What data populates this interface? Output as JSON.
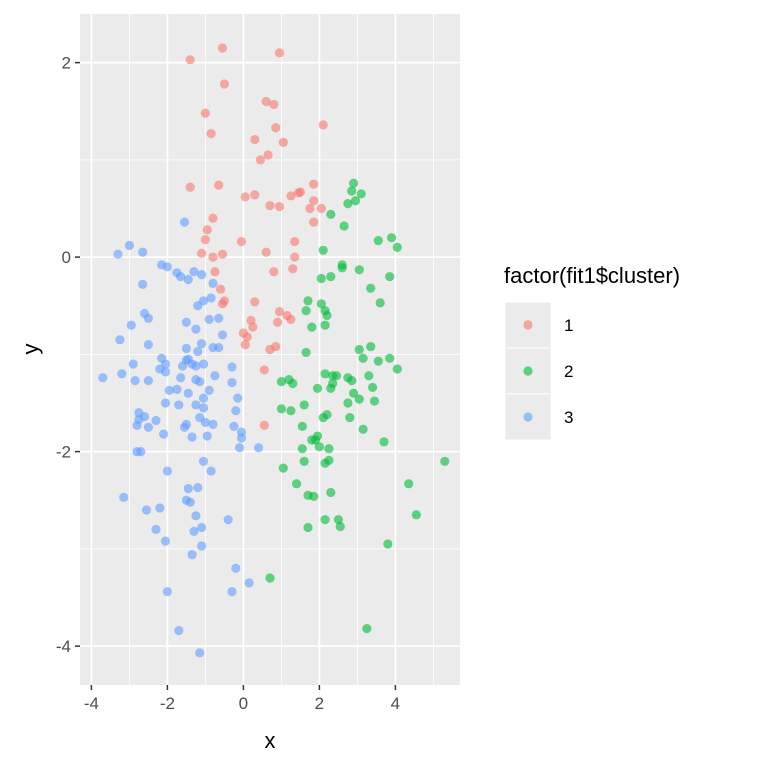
{
  "chart_data": {
    "type": "scatter",
    "xlabel": "x",
    "ylabel": "y",
    "xlim": [
      -4.3,
      5.7
    ],
    "ylim": [
      -4.4,
      2.5
    ],
    "x_ticks": [
      -4,
      -2,
      0,
      2,
      4
    ],
    "y_ticks": [
      -4,
      -2,
      0,
      2
    ],
    "x_tick_labels": [
      "-4",
      "-2",
      "0",
      "2",
      "4"
    ],
    "y_tick_labels": [
      "-4",
      "-2",
      "0",
      "2"
    ],
    "grid": true,
    "legend": {
      "title": "factor(fit1$cluster)",
      "placement": "right"
    },
    "series": [
      {
        "name": "1",
        "color": "#F8766D",
        "points": [
          [
            -1.4,
            2.03
          ],
          [
            -0.55,
            2.15
          ],
          [
            0.95,
            2.1
          ],
          [
            -0.5,
            1.78
          ],
          [
            0.6,
            1.6
          ],
          [
            0.8,
            1.57
          ],
          [
            -1.0,
            1.48
          ],
          [
            2.1,
            1.36
          ],
          [
            0.85,
            1.33
          ],
          [
            -0.85,
            1.27
          ],
          [
            0.3,
            1.21
          ],
          [
            1.05,
            1.18
          ],
          [
            0.65,
            1.05
          ],
          [
            0.45,
            1.0
          ],
          [
            -1.4,
            0.72
          ],
          [
            -0.65,
            0.74
          ],
          [
            1.85,
            0.75
          ],
          [
            1.5,
            0.67
          ],
          [
            1.45,
            0.66
          ],
          [
            1.25,
            0.63
          ],
          [
            0.3,
            0.64
          ],
          [
            0.05,
            0.62
          ],
          [
            1.75,
            0.5
          ],
          [
            0.7,
            0.53
          ],
          [
            0.95,
            0.52
          ],
          [
            2.05,
            0.5
          ],
          [
            1.85,
            0.58
          ],
          [
            -0.8,
            0.4
          ],
          [
            1.85,
            0.36
          ],
          [
            -0.95,
            0.28
          ],
          [
            -1.0,
            0.18
          ],
          [
            1.35,
            0.16
          ],
          [
            -0.05,
            0.16
          ],
          [
            -1.1,
            0.04
          ],
          [
            -0.8,
            0.0
          ],
          [
            -0.55,
            0.03
          ],
          [
            0.6,
            0.05
          ],
          [
            -0.75,
            -0.15
          ],
          [
            0.8,
            -0.15
          ],
          [
            1.35,
            0.0
          ],
          [
            1.3,
            -0.12
          ],
          [
            -0.6,
            -0.33
          ],
          [
            -0.5,
            -0.45
          ],
          [
            -0.55,
            -0.48
          ],
          [
            0.3,
            -0.46
          ],
          [
            0.95,
            -0.56
          ],
          [
            1.15,
            -0.6
          ],
          [
            0.2,
            -0.65
          ],
          [
            0.25,
            -0.72
          ],
          [
            0.9,
            -0.67
          ],
          [
            1.25,
            -0.64
          ],
          [
            0.1,
            -0.82
          ],
          [
            0.85,
            -0.92
          ],
          [
            0.7,
            -0.95
          ],
          [
            0.55,
            -1.16
          ],
          [
            0.55,
            -1.73
          ],
          [
            0.0,
            -0.78
          ],
          [
            0.05,
            -0.9
          ]
        ]
      },
      {
        "name": "2",
        "color": "#00BA38",
        "points": [
          [
            2.9,
            0.76
          ],
          [
            2.85,
            0.68
          ],
          [
            3.1,
            0.65
          ],
          [
            2.75,
            0.55
          ],
          [
            2.95,
            0.58
          ],
          [
            2.3,
            0.44
          ],
          [
            2.65,
            0.32
          ],
          [
            3.9,
            0.2
          ],
          [
            3.55,
            0.17
          ],
          [
            4.05,
            0.1
          ],
          [
            2.1,
            0.07
          ],
          [
            2.6,
            -0.08
          ],
          [
            2.6,
            -0.11
          ],
          [
            3.05,
            -0.13
          ],
          [
            3.85,
            -0.2
          ],
          [
            2.3,
            -0.2
          ],
          [
            2.05,
            -0.22
          ],
          [
            3.35,
            -0.32
          ],
          [
            1.7,
            -0.45
          ],
          [
            2.05,
            -0.48
          ],
          [
            3.6,
            -0.47
          ],
          [
            1.65,
            -0.55
          ],
          [
            2.15,
            -0.55
          ],
          [
            2.2,
            -0.6
          ],
          [
            1.8,
            -0.72
          ],
          [
            2.15,
            -0.7
          ],
          [
            3.35,
            -0.92
          ],
          [
            3.05,
            -0.95
          ],
          [
            1.65,
            -0.98
          ],
          [
            3.15,
            -1.04
          ],
          [
            3.55,
            -1.07
          ],
          [
            3.85,
            -1.04
          ],
          [
            2.15,
            -1.2
          ],
          [
            2.35,
            -1.22
          ],
          [
            2.45,
            -1.22
          ],
          [
            3.3,
            -1.22
          ],
          [
            4.05,
            -1.15
          ],
          [
            2.75,
            -1.24
          ],
          [
            2.85,
            -1.27
          ],
          [
            1.0,
            -1.28
          ],
          [
            1.2,
            -1.26
          ],
          [
            1.3,
            -1.3
          ],
          [
            2.35,
            -1.3
          ],
          [
            2.3,
            -1.35
          ],
          [
            1.95,
            -1.35
          ],
          [
            2.9,
            -1.4
          ],
          [
            3.4,
            -1.34
          ],
          [
            2.75,
            -1.5
          ],
          [
            3.05,
            -1.46
          ],
          [
            3.45,
            -1.48
          ],
          [
            1.0,
            -1.56
          ],
          [
            1.6,
            -1.52
          ],
          [
            1.25,
            -1.58
          ],
          [
            2.1,
            -1.65
          ],
          [
            2.2,
            -1.62
          ],
          [
            2.8,
            -1.65
          ],
          [
            3.15,
            -1.77
          ],
          [
            1.55,
            -1.74
          ],
          [
            1.8,
            -1.88
          ],
          [
            1.9,
            -1.88
          ],
          [
            1.95,
            -1.84
          ],
          [
            2.0,
            -1.95
          ],
          [
            2.25,
            -1.97
          ],
          [
            3.7,
            -1.9
          ],
          [
            1.55,
            -1.97
          ],
          [
            1.6,
            -2.1
          ],
          [
            2.15,
            -2.12
          ],
          [
            2.25,
            -2.09
          ],
          [
            5.3,
            -2.1
          ],
          [
            1.05,
            -2.17
          ],
          [
            1.4,
            -2.33
          ],
          [
            4.35,
            -2.33
          ],
          [
            2.3,
            -2.42
          ],
          [
            1.7,
            -2.45
          ],
          [
            1.85,
            -2.46
          ],
          [
            2.15,
            -2.7
          ],
          [
            2.5,
            -2.7
          ],
          [
            4.55,
            -2.65
          ],
          [
            2.55,
            -2.77
          ],
          [
            1.7,
            -2.78
          ],
          [
            3.8,
            -2.95
          ],
          [
            0.7,
            -3.3
          ],
          [
            3.25,
            -3.82
          ]
        ]
      },
      {
        "name": "3",
        "color": "#619CFF",
        "points": [
          [
            -3.0,
            0.12
          ],
          [
            -2.65,
            0.05
          ],
          [
            -3.3,
            0.03
          ],
          [
            -2.15,
            -0.08
          ],
          [
            -2.0,
            -0.1
          ],
          [
            -1.75,
            -0.16
          ],
          [
            -1.3,
            -0.15
          ],
          [
            -1.1,
            -0.18
          ],
          [
            -1.65,
            -0.2
          ],
          [
            -1.45,
            -0.23
          ],
          [
            -0.8,
            -0.27
          ],
          [
            -2.65,
            -0.28
          ],
          [
            -0.85,
            -0.42
          ],
          [
            -1.05,
            -0.45
          ],
          [
            -1.2,
            -0.5
          ],
          [
            -2.6,
            -0.58
          ],
          [
            -2.5,
            -0.63
          ],
          [
            -0.9,
            -0.64
          ],
          [
            -0.65,
            -0.63
          ],
          [
            -1.5,
            -0.67
          ],
          [
            -2.95,
            -0.7
          ],
          [
            -1.25,
            -0.74
          ],
          [
            -0.55,
            -0.8
          ],
          [
            -3.25,
            -0.85
          ],
          [
            -1.1,
            -0.89
          ],
          [
            -2.5,
            -0.9
          ],
          [
            -0.8,
            -0.93
          ],
          [
            -0.65,
            -0.93
          ],
          [
            -1.5,
            -0.94
          ],
          [
            -1.2,
            -0.97
          ],
          [
            -2.15,
            -1.04
          ],
          [
            -1.5,
            -1.06
          ],
          [
            -1.45,
            -1.05
          ],
          [
            -1.35,
            -1.1
          ],
          [
            -1.05,
            -1.1
          ],
          [
            -2.9,
            -1.1
          ],
          [
            -2.05,
            -1.1
          ],
          [
            -1.25,
            -1.12
          ],
          [
            -2.2,
            -1.15
          ],
          [
            -2.05,
            -1.18
          ],
          [
            -1.6,
            -1.12
          ],
          [
            -0.3,
            -1.13
          ],
          [
            -3.2,
            -1.2
          ],
          [
            -3.7,
            -1.24
          ],
          [
            -1.65,
            -1.24
          ],
          [
            -2.85,
            -1.27
          ],
          [
            -1.25,
            -1.26
          ],
          [
            -0.75,
            -1.22
          ],
          [
            -1.15,
            -1.28
          ],
          [
            -2.5,
            -1.27
          ],
          [
            -0.3,
            -1.29
          ],
          [
            -1.75,
            -1.36
          ],
          [
            -1.95,
            -1.37
          ],
          [
            -1.45,
            -1.4
          ],
          [
            -0.9,
            -1.37
          ],
          [
            -1.05,
            -1.45
          ],
          [
            -0.15,
            -1.45
          ],
          [
            -2.05,
            -1.5
          ],
          [
            -1.7,
            -1.52
          ],
          [
            -1.25,
            -1.52
          ],
          [
            -1.05,
            -1.55
          ],
          [
            -2.75,
            -1.6
          ],
          [
            -0.2,
            -1.58
          ],
          [
            -2.6,
            -1.64
          ],
          [
            -1.15,
            -1.65
          ],
          [
            -2.3,
            -1.68
          ],
          [
            -2.75,
            -1.67
          ],
          [
            -1.5,
            -1.72
          ],
          [
            -0.8,
            -1.72
          ],
          [
            -2.8,
            -1.73
          ],
          [
            -2.5,
            -1.75
          ],
          [
            -1.55,
            -1.75
          ],
          [
            -1.0,
            -1.7
          ],
          [
            -0.25,
            -1.74
          ],
          [
            -0.05,
            -1.8
          ],
          [
            -2.1,
            -1.82
          ],
          [
            -1.35,
            -1.85
          ],
          [
            -0.95,
            -1.84
          ],
          [
            -0.05,
            -1.86
          ],
          [
            -2.8,
            -2.0
          ],
          [
            -2.7,
            -2.0
          ],
          [
            -0.1,
            -1.96
          ],
          [
            0.4,
            -1.96
          ],
          [
            -1.05,
            -2.1
          ],
          [
            -2.0,
            -2.2
          ],
          [
            -0.85,
            -2.2
          ],
          [
            -1.45,
            -2.38
          ],
          [
            -1.2,
            -2.37
          ],
          [
            -3.15,
            -2.47
          ],
          [
            -1.5,
            -2.5
          ],
          [
            -1.4,
            -2.52
          ],
          [
            -2.55,
            -2.6
          ],
          [
            -2.2,
            -2.58
          ],
          [
            -1.25,
            -2.66
          ],
          [
            -0.4,
            -2.7
          ],
          [
            -2.3,
            -2.8
          ],
          [
            -1.3,
            -2.82
          ],
          [
            -1.1,
            -2.78
          ],
          [
            -2.05,
            -2.92
          ],
          [
            -1.1,
            -2.97
          ],
          [
            -1.35,
            -3.06
          ],
          [
            -0.2,
            -3.2
          ],
          [
            0.15,
            -3.35
          ],
          [
            -0.3,
            -3.44
          ],
          [
            -2.0,
            -3.44
          ],
          [
            -1.7,
            -3.84
          ],
          [
            -1.15,
            -4.07
          ],
          [
            -1.55,
            0.36
          ]
        ]
      }
    ]
  }
}
